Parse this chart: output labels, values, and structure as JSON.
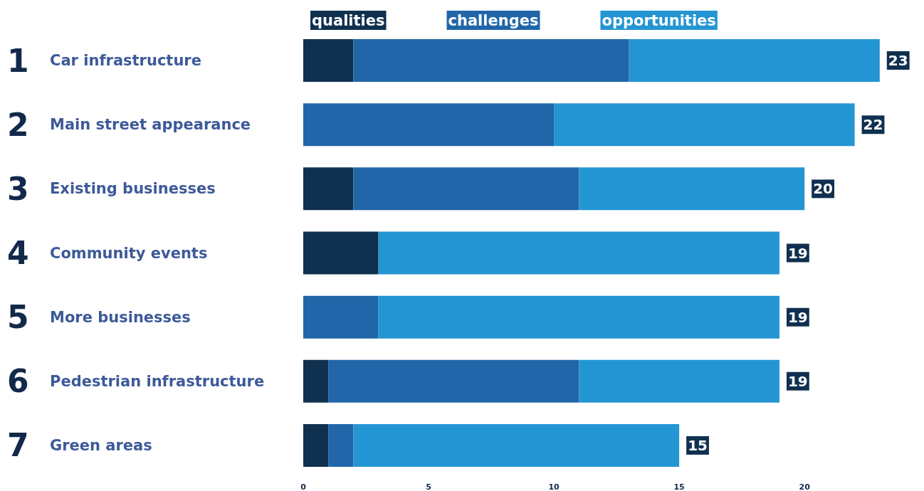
{
  "chart_data": {
    "type": "bar",
    "orientation": "horizontal",
    "stacked": true,
    "categories": [
      "1 Car infrastructure",
      "2 Main street appearance",
      "3 Existing businesses",
      "4 Community events",
      "5 More businesses",
      "6 Pedestrian infrastructure",
      "7 Green areas"
    ],
    "series": [
      {
        "name": "qualities",
        "color": "#10304f",
        "values": [
          2,
          0,
          2,
          3,
          0,
          1,
          1
        ]
      },
      {
        "name": "challenges",
        "color": "#2066a8",
        "values": [
          11,
          10,
          9,
          0,
          3,
          10,
          1
        ]
      },
      {
        "name": "opportunities",
        "color": "#2495d3",
        "values": [
          10,
          12,
          9,
          16,
          16,
          8,
          13
        ]
      }
    ],
    "totals": [
      "23",
      "22",
      "20",
      "19",
      "19",
      "19",
      "15"
    ],
    "xlim": [
      0,
      24
    ],
    "xticks": [
      0,
      5,
      10,
      15,
      20
    ],
    "legend": "top",
    "grid": false
  }
}
